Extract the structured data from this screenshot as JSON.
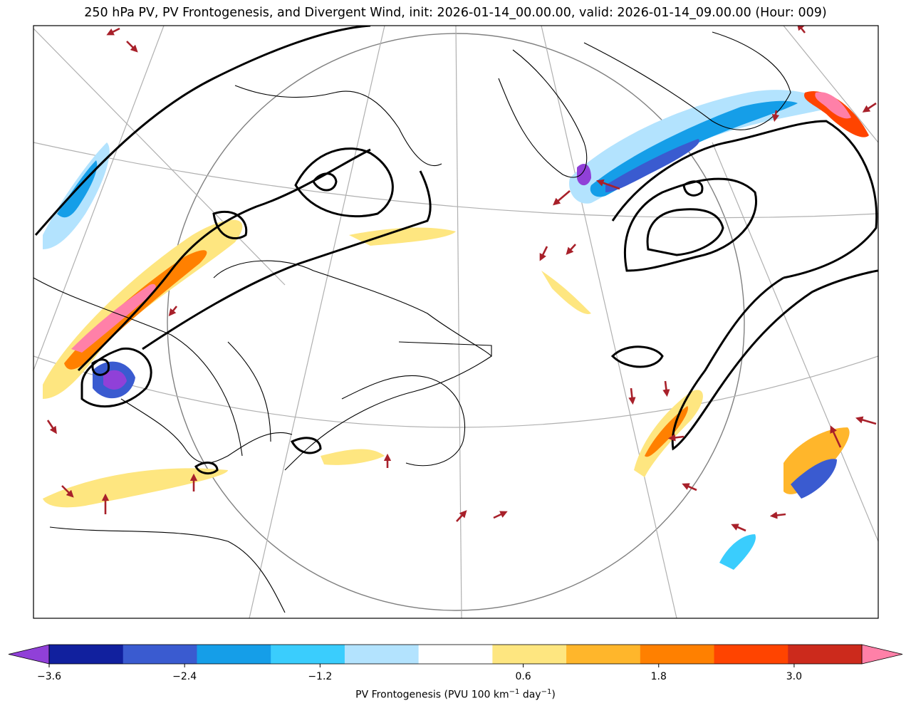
{
  "title": "250 hPa PV, PV Frontogenesis, and Divergent Wind, init: 2026-01-14_00.00.00, valid: 2026-01-14_09.00.00 (Hour: 009)",
  "colorbar": {
    "label_prefix": "PV Frontogenesis (PVU 100 km",
    "label_exp1": "−1",
    "label_mid": " day",
    "label_exp2": "−1",
    "label_suffix": ")",
    "bounds": [
      -3.6,
      -3.0,
      -2.4,
      -1.8,
      -1.2,
      -0.6,
      0.6,
      1.2,
      1.8,
      2.4,
      3.0,
      3.6
    ],
    "colors": [
      "#11209e",
      "#3a5bd0",
      "#159ee8",
      "#3acdfd",
      "#b3e3fe",
      "#ffffff",
      "#fee680",
      "#ffb62b",
      "#ff8000",
      "#ff4400",
      "#cc2a1c"
    ],
    "under_color": "#9040d8",
    "over_color": "#ff80a8",
    "ticks": [
      {
        "value": -3.6,
        "label": "−3.6"
      },
      {
        "value": -2.4,
        "label": "−2.4"
      },
      {
        "value": -1.2,
        "label": "−1.2"
      },
      {
        "value": 0.6,
        "label": "0.6"
      },
      {
        "value": 1.8,
        "label": "1.8"
      },
      {
        "value": 3.0,
        "label": "3.0"
      }
    ]
  },
  "colors": {
    "pv_contour": "#000000",
    "wind_arrow": "#a8202a",
    "graticule": "#b0b0b0",
    "boundary": "#000000"
  }
}
